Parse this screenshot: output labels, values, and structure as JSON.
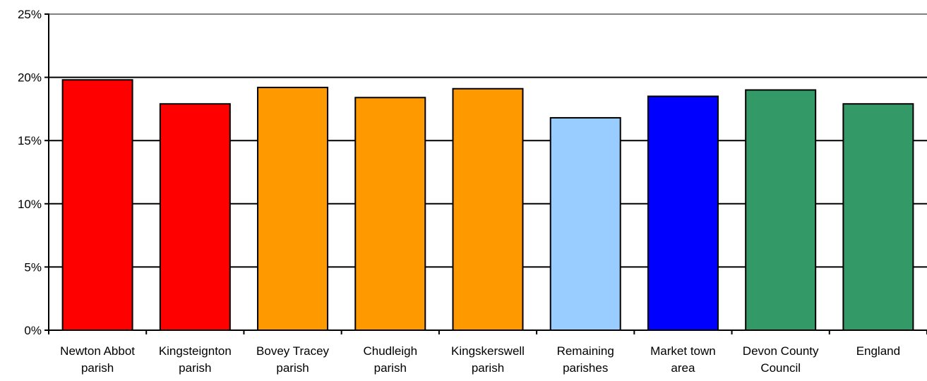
{
  "chart_data": {
    "type": "bar",
    "title": "",
    "xlabel": "",
    "ylabel": "",
    "ylim": [
      0,
      25
    ],
    "yticks": [
      0,
      5,
      10,
      15,
      20,
      25
    ],
    "ytick_suffix": "%",
    "grid": true,
    "legend": "none",
    "categories": [
      [
        "Newton Abbot",
        "parish"
      ],
      [
        "Kingsteignton",
        "parish"
      ],
      [
        "Bovey Tracey",
        "parish"
      ],
      [
        "Chudleigh",
        "parish"
      ],
      [
        "Kingskerswell",
        "parish"
      ],
      [
        "Remaining",
        "parishes"
      ],
      [
        "Market town",
        "area"
      ],
      [
        "Devon County",
        "Council"
      ],
      [
        "England"
      ]
    ],
    "values": [
      19.8,
      17.9,
      19.2,
      18.4,
      19.1,
      16.8,
      18.5,
      19.0,
      17.9
    ],
    "colors": [
      "#ff0000",
      "#ff0000",
      "#ff9900",
      "#ff9900",
      "#ff9900",
      "#99ccff",
      "#0000ff",
      "#339966",
      "#339966"
    ]
  }
}
